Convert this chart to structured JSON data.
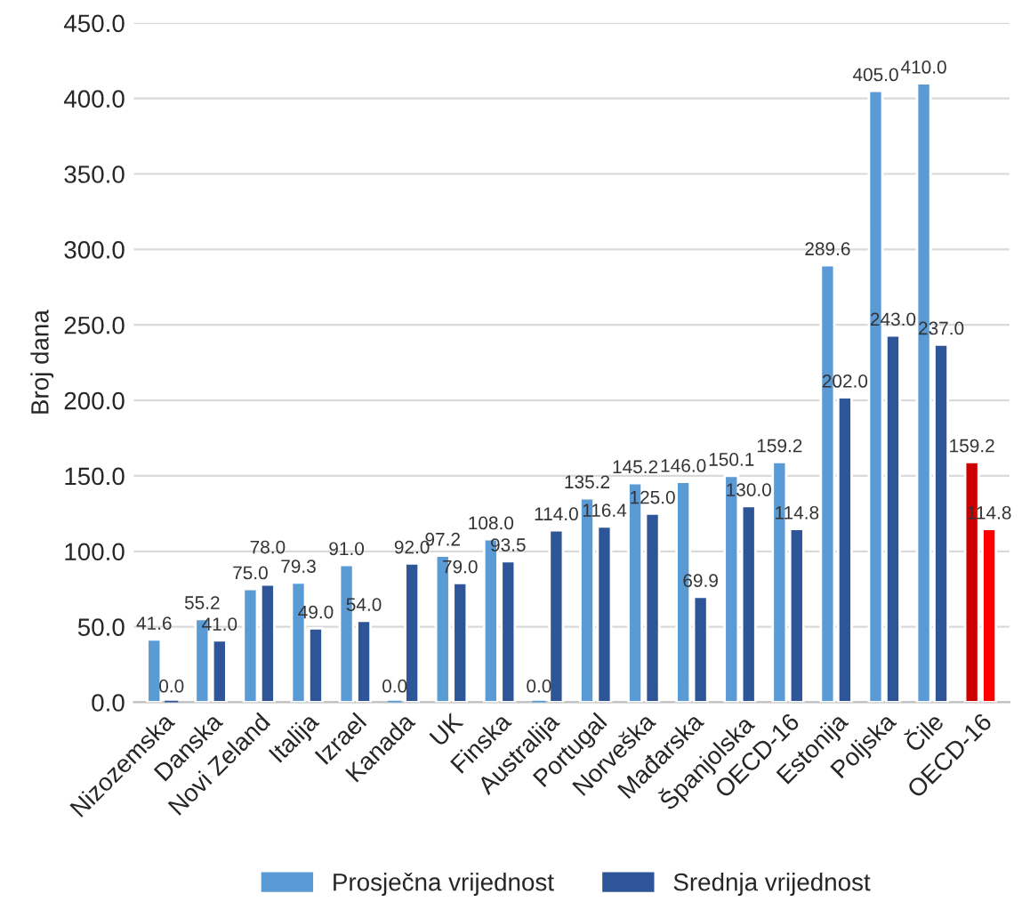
{
  "chart_data": {
    "type": "bar",
    "ylabel": "Broj dana",
    "categories": [
      "Nizozemska",
      "Danska",
      "Novi Zeland",
      "Italija",
      "Izrael",
      "Kanada",
      "UK",
      "Finska",
      "Australija",
      "Portugal",
      "Norveška",
      "Mađarska",
      "Španjolska",
      "OECD-16",
      "Estonija",
      "Poljska",
      "Čile",
      "OECD-16"
    ],
    "series": [
      {
        "name": "Prosječna vrijednost",
        "color": "#5b9bd5",
        "colors": [
          "#5b9bd5",
          "#5b9bd5",
          "#5b9bd5",
          "#5b9bd5",
          "#5b9bd5",
          "#5b9bd5",
          "#5b9bd5",
          "#5b9bd5",
          "#5b9bd5",
          "#5b9bd5",
          "#5b9bd5",
          "#5b9bd5",
          "#5b9bd5",
          "#5b9bd5",
          "#5b9bd5",
          "#5b9bd5",
          "#5b9bd5",
          "#cc0000"
        ],
        "values": [
          41.6,
          55.2,
          75.0,
          79.3,
          91.0,
          0.0,
          97.2,
          108.0,
          0.0,
          135.2,
          145.2,
          146.0,
          150.1,
          159.2,
          289.6,
          405.0,
          410.0,
          159.2
        ],
        "value_labels": [
          "41.6",
          "55.2",
          "75.0",
          "79.3",
          "91.0",
          "0.0",
          "97.2",
          "108.0",
          "0.0",
          "135.2",
          "145.2",
          "146.0",
          "150.1",
          "159.2",
          "289.6",
          "405.0",
          "410.0",
          "159.2"
        ]
      },
      {
        "name": "Srednja vrijednost",
        "color": "#2e5597",
        "colors": [
          "#2e5597",
          "#2e5597",
          "#2e5597",
          "#2e5597",
          "#2e5597",
          "#2e5597",
          "#2e5597",
          "#2e5597",
          "#2e5597",
          "#2e5597",
          "#2e5597",
          "#2e5597",
          "#2e5597",
          "#2e5597",
          "#2e5597",
          "#2e5597",
          "#2e5597",
          "#ff0000"
        ],
        "values": [
          0.0,
          41.0,
          78.0,
          49.0,
          54.0,
          92.0,
          79.0,
          93.5,
          114.0,
          116.4,
          125.0,
          69.9,
          130.0,
          114.8,
          202.0,
          243.0,
          237.0,
          114.8
        ],
        "value_labels": [
          "0.0",
          "41.0",
          "78.0",
          "49.0",
          "54.0",
          "92.0",
          "79.0",
          "93.5",
          "114.0",
          "116.4",
          "125.0",
          "69.9",
          "130.0",
          "114.8",
          "202.0",
          "243.0",
          "237.0",
          "114.8"
        ]
      }
    ],
    "ylim": [
      0,
      450
    ],
    "yticks": [
      {
        "value": 0,
        "label": "0.0"
      },
      {
        "value": 50,
        "label": "50.0"
      },
      {
        "value": 100,
        "label": "100.0"
      },
      {
        "value": 150,
        "label": "150.0"
      },
      {
        "value": 200,
        "label": "200.0"
      },
      {
        "value": 250,
        "label": "250.0"
      },
      {
        "value": 300,
        "label": "300.0"
      },
      {
        "value": 350,
        "label": "350.0"
      },
      {
        "value": 400,
        "label": "400.0"
      },
      {
        "value": 450,
        "label": "450.0"
      }
    ],
    "grid": "y",
    "legend": "bottom"
  }
}
